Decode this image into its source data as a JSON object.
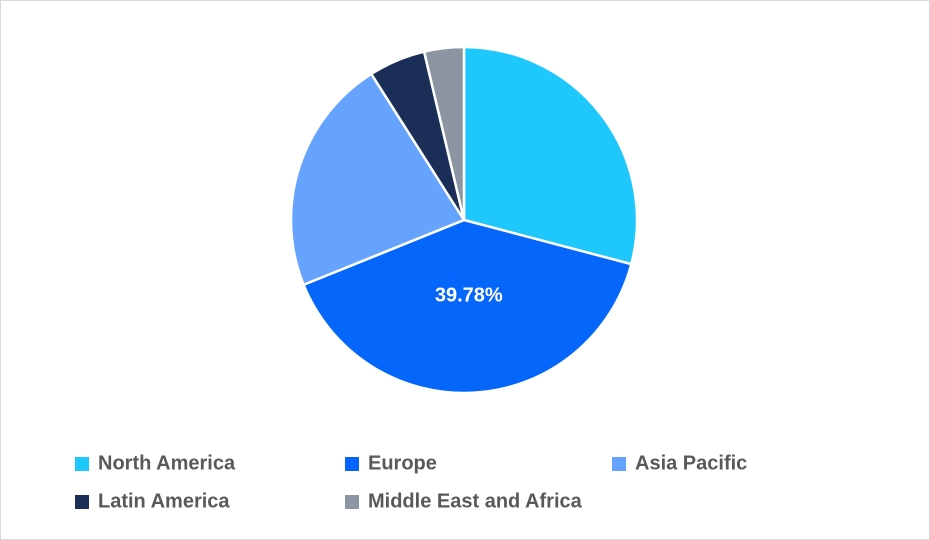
{
  "chart_data": {
    "type": "pie",
    "categories": [
      "North America",
      "Europe",
      "Asia Pacific",
      "Latin America",
      "Middle East and Africa"
    ],
    "values": [
      29.1,
      39.78,
      22.1,
      5.3,
      3.7
    ],
    "value_labels": [
      null,
      "39.78%",
      null,
      null,
      null
    ],
    "colors": [
      "#1fc8fc",
      "#0466fb",
      "#65a3ff",
      "#1b2e57",
      "#8d95a3"
    ],
    "legend": "bottom"
  }
}
